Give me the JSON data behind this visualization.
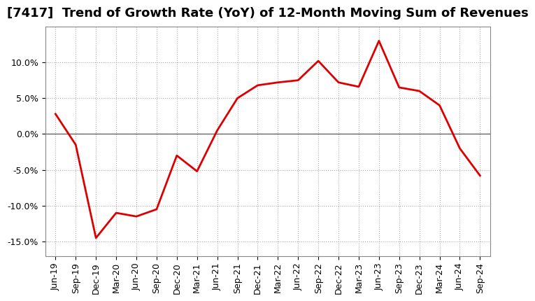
{
  "title": "[7417]  Trend of Growth Rate (YoY) of 12-Month Moving Sum of Revenues",
  "x_labels": [
    "Jun-19",
    "Sep-19",
    "Dec-19",
    "Mar-20",
    "Jun-20",
    "Sep-20",
    "Dec-20",
    "Mar-21",
    "Jun-21",
    "Sep-21",
    "Dec-21",
    "Mar-22",
    "Jun-22",
    "Sep-22",
    "Dec-22",
    "Mar-23",
    "Jun-23",
    "Sep-23",
    "Dec-23",
    "Mar-24",
    "Jun-24",
    "Sep-24"
  ],
  "y_values": [
    2.8,
    -1.5,
    -14.5,
    -11.0,
    -11.5,
    -10.5,
    -3.0,
    -5.2,
    0.5,
    5.0,
    6.8,
    7.2,
    7.5,
    10.2,
    7.2,
    6.6,
    13.0,
    6.5,
    6.0,
    4.0,
    -2.0,
    -5.8
  ],
  "line_color": "#dd0000",
  "line_width": 2.0,
  "ylim": [
    -17.0,
    15.0
  ],
  "yticks": [
    -15.0,
    -10.0,
    -5.0,
    0.0,
    5.0,
    10.0
  ],
  "grid_color": "#aaaaaa",
  "grid_linestyle": "dotted",
  "zero_line_color": "#666666",
  "background_color": "#ffffff",
  "title_fontsize": 13,
  "tick_fontsize": 9
}
